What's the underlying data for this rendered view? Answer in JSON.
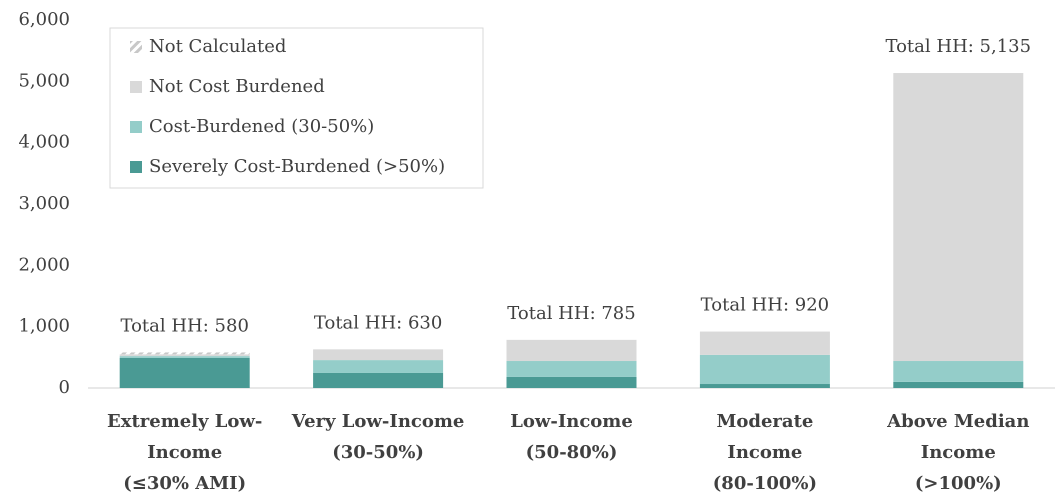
{
  "chart_data": {
    "type": "stacked-bar",
    "categories": [
      [
        "Extremely Low-",
        "Income",
        "(≤30% AMI)"
      ],
      [
        "Very Low-Income",
        "(30-50%)"
      ],
      [
        "Low-Income",
        "(50-80%)"
      ],
      [
        "Moderate",
        "Income",
        "(80-100%)"
      ],
      [
        "Above Median",
        "Income",
        "(>100%)"
      ]
    ],
    "series": [
      {
        "name": "Severely Cost-Burdened (>50%)",
        "color": "#4a9a94",
        "values": [
          490,
          245,
          180,
          65,
          100
        ]
      },
      {
        "name": "Cost-Burdened (30-50%)",
        "color": "#94cdc9",
        "values": [
          30,
          210,
          260,
          475,
          340
        ]
      },
      {
        "name": "Not Cost Burdened",
        "color": "#d9d9d9",
        "values": [
          30,
          175,
          345,
          380,
          4695
        ]
      },
      {
        "name": "Not Calculated",
        "color": "hatch",
        "values": [
          30,
          0,
          0,
          0,
          0
        ]
      }
    ],
    "annotations": [
      "Total HH: 580",
      "Total HH: 630",
      "Total HH: 785",
      "Total HH: 920",
      "Total HH: 5,135"
    ],
    "ylim": [
      0,
      6000
    ],
    "yticks": [
      0,
      {
        "value": 1000,
        "label": "1,000"
      },
      {
        "value": 2000,
        "label": "2,000"
      },
      {
        "value": 3000,
        "label": "3,000"
      },
      {
        "value": 4000,
        "label": "4,000"
      },
      {
        "value": 5000,
        "label": "5,000"
      },
      {
        "value": 6000,
        "label": "6,000"
      }
    ],
    "grid": false,
    "legend": "upper left"
  }
}
